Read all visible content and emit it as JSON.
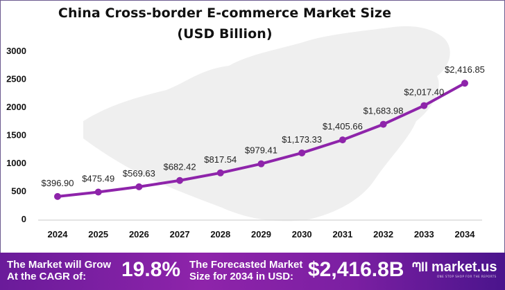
{
  "chart_data": {
    "type": "line",
    "title": "China Cross-border E-commerce Market Size",
    "subtitle": "(USD Billion)",
    "xlabel": "",
    "ylabel": "",
    "categories": [
      "2024",
      "2025",
      "2026",
      "2027",
      "2028",
      "2029",
      "2030",
      "2031",
      "2032",
      "2033",
      "2034"
    ],
    "values": [
      396.9,
      475.49,
      569.63,
      682.42,
      817.54,
      979.41,
      1173.33,
      1405.66,
      1683.98,
      2017.4,
      2416.85
    ],
    "data_labels": [
      "$396.90",
      "$475.49",
      "$569.63",
      "$682.42",
      "$817.54",
      "$979.41",
      "$1,173.33",
      "$1,405.66",
      "$1,683.98",
      "$2,017.40",
      "$2,416.85"
    ],
    "ylim": [
      0,
      3000
    ],
    "yticks": [
      "0",
      "500",
      "1000",
      "1500",
      "2000",
      "2500",
      "3000"
    ],
    "grid": false,
    "legend": null,
    "line_color": "#8e24aa"
  },
  "title": {
    "line1": "China Cross-border E-commerce Market Size",
    "line2": "(USD Billion)"
  },
  "footer": {
    "cagr_label_1": "The Market will Grow",
    "cagr_label_2": "At the CAGR of:",
    "cagr_value": "19.8%",
    "forecast_label_1": "The Forecasted Market",
    "forecast_label_2": "Size for 2034 in USD:",
    "forecast_value": "$2,416.8B",
    "brand": "market.us",
    "tagline": "ONE STOP SHOP FOR THE REPORTS"
  }
}
